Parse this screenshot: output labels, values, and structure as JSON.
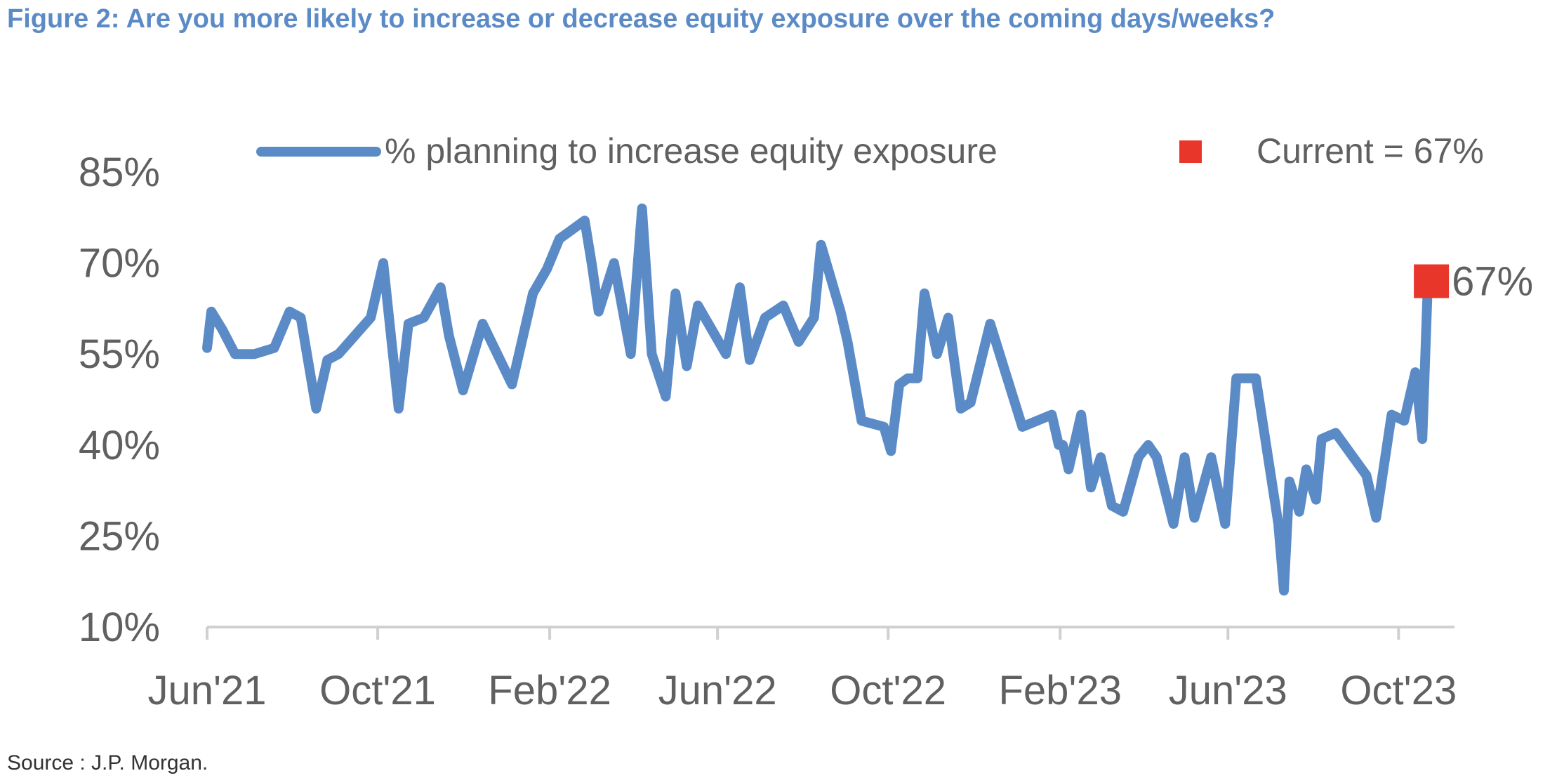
{
  "title": "Figure 2: Are you more likely to increase or decrease equity exposure over the coming days/weeks?",
  "source": "Source : J.P. Morgan.",
  "colors": {
    "title": "#5B8BC7",
    "line": "#5B8BC7",
    "marker": "#E8362A",
    "text": "#606060",
    "axis": "#D0D0D0"
  },
  "chart_data": {
    "type": "line",
    "title": "",
    "xlabel": "",
    "ylabel": "",
    "legend": {
      "position": "top",
      "line_label": "% planning to increase equity exposure",
      "marker_label": "Current = 67%"
    },
    "y_ticks": [
      "10%",
      "25%",
      "40%",
      "55%",
      "70%",
      "85%"
    ],
    "ylim": [
      10,
      85
    ],
    "x_ticks": [
      "Jun'21",
      "Oct'21",
      "Feb'22",
      "Jun'22",
      "Oct'22",
      "Feb'23",
      "Jun'23",
      "Oct'23"
    ],
    "grid": false,
    "series": [
      {
        "name": "% planning to increase equity exposure",
        "x": [
          "2021-06-01",
          "2021-06-04",
          "2021-06-12",
          "2021-06-21",
          "2021-07-05",
          "2021-07-19",
          "2021-07-30",
          "2021-08-07",
          "2021-08-18",
          "2021-08-26",
          "2021-09-03",
          "2021-09-26",
          "2021-10-05",
          "2021-10-16",
          "2021-10-23",
          "2021-11-03",
          "2021-11-15",
          "2021-11-21",
          "2021-12-01",
          "2021-12-15",
          "2022-01-05",
          "2022-01-20",
          "2022-01-30",
          "2022-02-08",
          "2022-02-14",
          "2022-02-26",
          "2022-03-03",
          "2022-03-08",
          "2022-03-19",
          "2022-03-31",
          "2022-04-08",
          "2022-04-15",
          "2022-04-25",
          "2022-05-02",
          "2022-05-10",
          "2022-05-18",
          "2022-06-07",
          "2022-06-17",
          "2022-06-24",
          "2022-07-05",
          "2022-07-18",
          "2022-07-29",
          "2022-08-09",
          "2022-08-14",
          "2022-08-28",
          "2022-09-02",
          "2022-09-12",
          "2022-09-28",
          "2022-10-03",
          "2022-10-09",
          "2022-10-15",
          "2022-10-22",
          "2022-10-27",
          "2022-11-05",
          "2022-11-13",
          "2022-11-22",
          "2022-11-29",
          "2022-12-13",
          "2023-01-05",
          "2023-01-26",
          "2023-01-31",
          "2023-02-03",
          "2023-02-07",
          "2023-02-16",
          "2023-02-23",
          "2023-03-02",
          "2023-03-10",
          "2023-03-18",
          "2023-03-29",
          "2023-04-05",
          "2023-04-11",
          "2023-04-23",
          "2023-05-01",
          "2023-05-08",
          "2023-05-20",
          "2023-05-30",
          "2023-06-07",
          "2023-06-21",
          "2023-07-07",
          "2023-07-11",
          "2023-07-15",
          "2023-07-22",
          "2023-07-27",
          "2023-08-03",
          "2023-08-07",
          "2023-08-17",
          "2023-09-08",
          "2023-09-15",
          "2023-09-26",
          "2023-10-05",
          "2023-10-13",
          "2023-10-18",
          "2023-10-22",
          "2023-10-26"
        ],
        "y": [
          56,
          62,
          59,
          55,
          55,
          56,
          62,
          61,
          46,
          54,
          55,
          61,
          70,
          46,
          60,
          61,
          66,
          58,
          49,
          60,
          50,
          65,
          69,
          74,
          75,
          77,
          70,
          62,
          70,
          55,
          79,
          55,
          48,
          65,
          53,
          63,
          55,
          66,
          54,
          61,
          63,
          57,
          61,
          73,
          62,
          57,
          44,
          43,
          39,
          50,
          51,
          51,
          65,
          55,
          61,
          46,
          47,
          60,
          43,
          45,
          40,
          40,
          36,
          45,
          33,
          38,
          30,
          29,
          38,
          40,
          38,
          27,
          38,
          28,
          38,
          27,
          51,
          51,
          27,
          16,
          34,
          29,
          36,
          31,
          41,
          42,
          35,
          28,
          45,
          44,
          52,
          41,
          67,
          67
        ]
      }
    ],
    "current": {
      "x": "2023-10-26",
      "y": 67,
      "label": "67%"
    }
  }
}
